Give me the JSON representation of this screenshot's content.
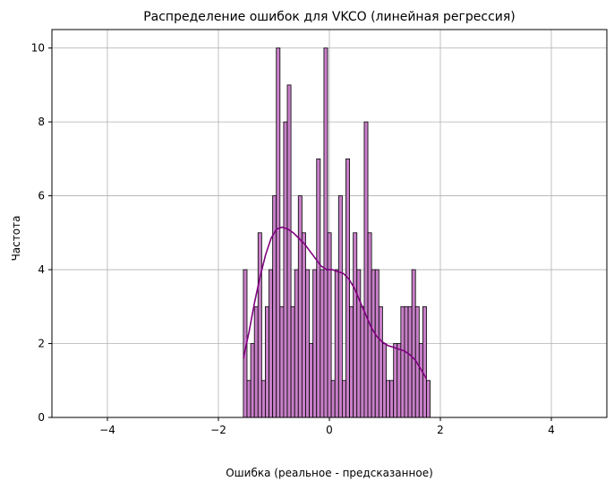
{
  "chart_data": {
    "type": "bar",
    "title": "Распределение ошибок для VKCO (линейная регрессия)",
    "xlabel": "Ошибка (реальное - предсказанное)",
    "ylabel": "Частота",
    "xlim": [
      -5,
      5
    ],
    "ylim": [
      0,
      10.5
    ],
    "x_ticks": [
      -4,
      -2,
      0,
      2,
      4
    ],
    "x_tick_labels": [
      "−4",
      "−2",
      "0",
      "2",
      "4"
    ],
    "y_ticks": [
      0,
      2,
      4,
      6,
      8,
      10
    ],
    "y_tick_labels": [
      "0",
      "2",
      "4",
      "6",
      "8",
      "10"
    ],
    "grid": true,
    "bin_start": -1.55,
    "bin_width": 0.066,
    "counts": [
      4,
      1,
      2,
      3,
      5,
      1,
      3,
      4,
      6,
      10,
      3,
      8,
      9,
      3,
      4,
      6,
      5,
      4,
      2,
      4,
      7,
      4,
      10,
      5,
      1,
      4,
      6,
      1,
      7,
      3,
      5,
      4,
      3,
      8,
      5,
      4,
      4,
      3,
      2,
      1,
      1,
      2,
      2,
      3,
      3,
      3,
      4,
      3,
      2,
      3,
      1
    ],
    "bar_color": "#c77fc7",
    "bar_edge_color": "#000000",
    "kde": {
      "color": "#800080",
      "x": [
        -1.55,
        -1.45,
        -1.35,
        -1.25,
        -1.15,
        -1.05,
        -0.95,
        -0.85,
        -0.75,
        -0.65,
        -0.55,
        -0.45,
        -0.35,
        -0.25,
        -0.15,
        -0.05,
        0.05,
        0.15,
        0.25,
        0.35,
        0.45,
        0.55,
        0.65,
        0.75,
        0.85,
        0.95,
        1.05,
        1.15,
        1.25,
        1.35,
        1.45,
        1.55,
        1.65,
        1.75
      ],
      "y": [
        1.6,
        2.3,
        3.1,
        3.8,
        4.4,
        4.85,
        5.1,
        5.15,
        5.1,
        5.0,
        4.85,
        4.7,
        4.5,
        4.3,
        4.1,
        4.0,
        4.0,
        3.95,
        3.9,
        3.75,
        3.5,
        3.15,
        2.8,
        2.45,
        2.2,
        2.05,
        1.95,
        1.9,
        1.85,
        1.8,
        1.7,
        1.55,
        1.3,
        1.05
      ]
    }
  }
}
